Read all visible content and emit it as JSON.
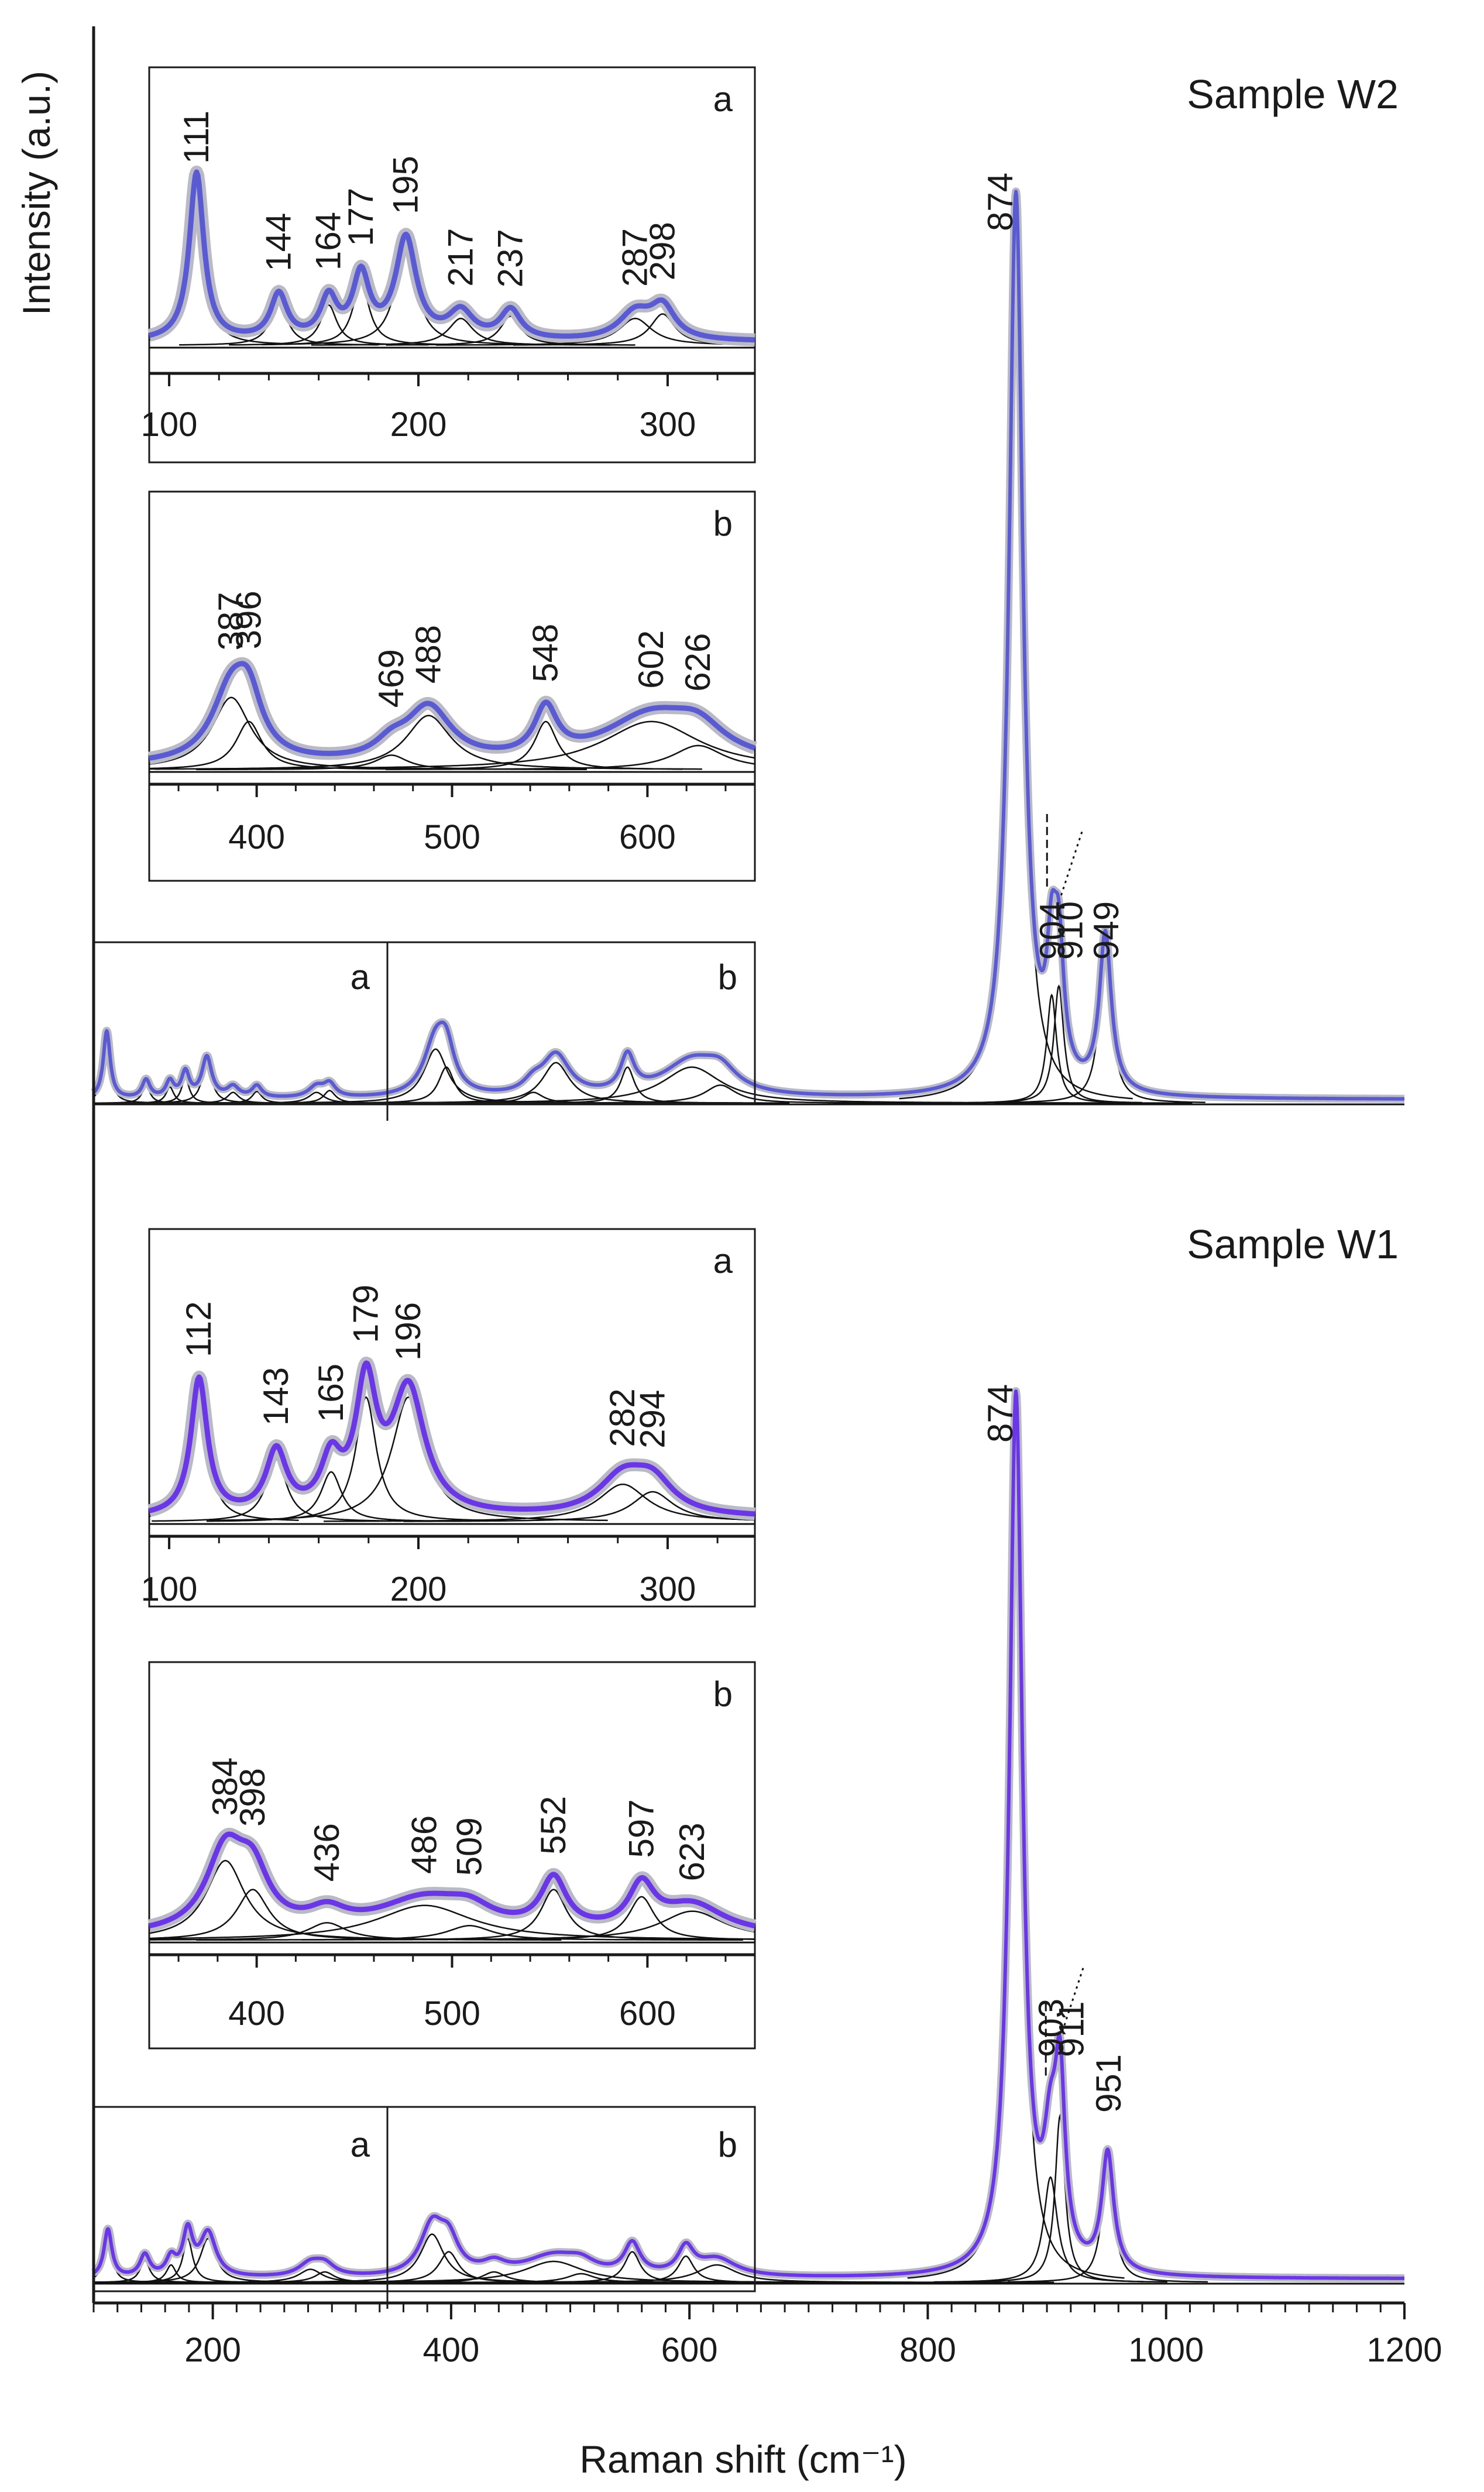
{
  "chart_data": {
    "type": "line",
    "xlabel": "Raman shift (cm⁻¹)",
    "ylabel": "Intensity (a.u.)",
    "xlim": [
      100,
      1200
    ],
    "xticks": [
      "200",
      "400",
      "600",
      "800",
      "1000",
      "1200"
    ],
    "colors": {
      "W2": "#5a5ad2",
      "W1": "#6a36e6",
      "halo": "#b9b9c8",
      "components": "#111111"
    },
    "panels": [
      {
        "name": "Sample W2",
        "key": "W2",
        "main_labels": [
          "874",
          "904",
          "910",
          "949"
        ],
        "peaks": [
          {
            "pos": 111,
            "amp": 0.075,
            "w": 3.5
          },
          {
            "pos": 144,
            "amp": 0.02,
            "w": 4
          },
          {
            "pos": 164,
            "amp": 0.018,
            "w": 4
          },
          {
            "pos": 177,
            "amp": 0.028,
            "w": 4
          },
          {
            "pos": 195,
            "amp": 0.045,
            "w": 5
          },
          {
            "pos": 217,
            "amp": 0.012,
            "w": 6
          },
          {
            "pos": 237,
            "amp": 0.013,
            "w": 5
          },
          {
            "pos": 287,
            "amp": 0.012,
            "w": 8
          },
          {
            "pos": 298,
            "amp": 0.014,
            "w": 6
          },
          {
            "pos": 387,
            "amp": 0.06,
            "w": 12
          },
          {
            "pos": 396,
            "amp": 0.04,
            "w": 8
          },
          {
            "pos": 469,
            "amp": 0.012,
            "w": 10
          },
          {
            "pos": 488,
            "amp": 0.045,
            "w": 14
          },
          {
            "pos": 548,
            "amp": 0.04,
            "w": 7
          },
          {
            "pos": 602,
            "amp": 0.04,
            "w": 30
          },
          {
            "pos": 626,
            "amp": 0.02,
            "w": 16
          },
          {
            "pos": 874,
            "amp": 1.0,
            "w": 7
          },
          {
            "pos": 904,
            "amp": 0.12,
            "w": 5
          },
          {
            "pos": 910,
            "amp": 0.13,
            "w": 5
          },
          {
            "pos": 949,
            "amp": 0.175,
            "w": 6
          }
        ],
        "inset_a": {
          "letter": "a",
          "xlim": [
            92,
            335
          ],
          "ticks": [
            "100",
            "200",
            "300"
          ],
          "labels": [
            "111",
            "144",
            "164",
            "177",
            "195",
            "217",
            "237",
            "287",
            "298"
          ]
        },
        "inset_b": {
          "letter": "b",
          "xlim": [
            345,
            655
          ],
          "ticks": [
            "400",
            "500",
            "600"
          ],
          "labels": [
            "387",
            "396",
            "469",
            "488",
            "548",
            "602",
            "626"
          ]
        }
      },
      {
        "name": "Sample W1",
        "key": "W1",
        "main_labels": [
          "874",
          "903",
          "911",
          "951"
        ],
        "peaks": [
          {
            "pos": 112,
            "amp": 0.055,
            "w": 4
          },
          {
            "pos": 143,
            "amp": 0.025,
            "w": 5
          },
          {
            "pos": 165,
            "amp": 0.02,
            "w": 5
          },
          {
            "pos": 179,
            "amp": 0.05,
            "w": 5
          },
          {
            "pos": 196,
            "amp": 0.05,
            "w": 8
          },
          {
            "pos": 282,
            "amp": 0.015,
            "w": 12
          },
          {
            "pos": 294,
            "amp": 0.012,
            "w": 10
          },
          {
            "pos": 384,
            "amp": 0.055,
            "w": 12
          },
          {
            "pos": 398,
            "amp": 0.035,
            "w": 10
          },
          {
            "pos": 436,
            "amp": 0.012,
            "w": 12
          },
          {
            "pos": 486,
            "amp": 0.024,
            "w": 30
          },
          {
            "pos": 509,
            "amp": 0.01,
            "w": 14
          },
          {
            "pos": 552,
            "amp": 0.035,
            "w": 8
          },
          {
            "pos": 597,
            "amp": 0.03,
            "w": 8
          },
          {
            "pos": 623,
            "amp": 0.02,
            "w": 20
          },
          {
            "pos": 874,
            "amp": 1.0,
            "w": 6.5
          },
          {
            "pos": 903,
            "amp": 0.12,
            "w": 7
          },
          {
            "pos": 911,
            "amp": 0.19,
            "w": 5
          },
          {
            "pos": 951,
            "amp": 0.135,
            "w": 6
          }
        ],
        "inset_a": {
          "letter": "a",
          "xlim": [
            92,
            335
          ],
          "ticks": [
            "100",
            "200",
            "300"
          ],
          "labels": [
            "112",
            "143",
            "165",
            "179",
            "196",
            "282",
            "294"
          ]
        },
        "inset_b": {
          "letter": "b",
          "xlim": [
            345,
            655
          ],
          "ticks": [
            "400",
            "500",
            "600"
          ],
          "labels": [
            "384",
            "398",
            "436",
            "486",
            "509",
            "552",
            "597",
            "623"
          ]
        }
      }
    ]
  }
}
